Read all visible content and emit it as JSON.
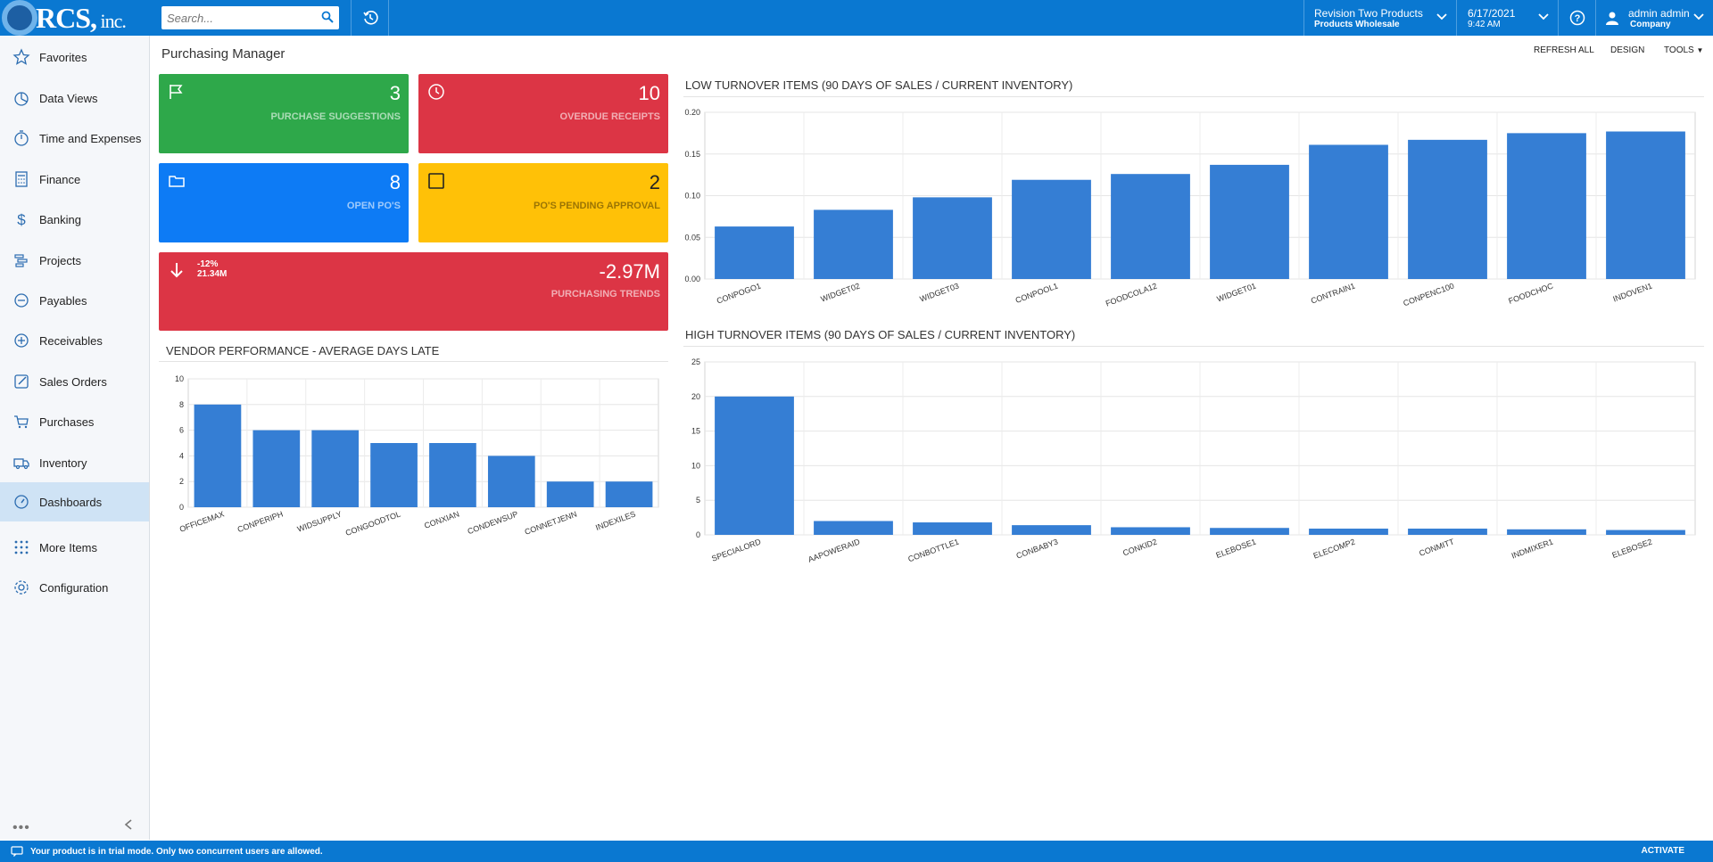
{
  "brand": {
    "logo_main": "RCS,",
    "logo_suffix": " inc."
  },
  "search": {
    "placeholder": "Search..."
  },
  "branch": {
    "name": "Revision Two Products",
    "sub": "Products Wholesale"
  },
  "datetime": {
    "date": "6/17/2021",
    "time": "9:42 AM"
  },
  "user": {
    "name": "admin admin",
    "company": "Company"
  },
  "sidebar": {
    "items": [
      {
        "label": "Favorites",
        "icon": "star-icon"
      },
      {
        "label": "Data Views",
        "icon": "pie-chart-icon"
      },
      {
        "label": "Time and Expenses",
        "icon": "stopwatch-icon"
      },
      {
        "label": "Finance",
        "icon": "calculator-icon"
      },
      {
        "label": "Banking",
        "icon": "dollar-icon"
      },
      {
        "label": "Projects",
        "icon": "gantt-icon"
      },
      {
        "label": "Payables",
        "icon": "minus-circle-icon"
      },
      {
        "label": "Receivables",
        "icon": "plus-circle-icon"
      },
      {
        "label": "Sales Orders",
        "icon": "pencil-icon"
      },
      {
        "label": "Purchases",
        "icon": "cart-icon"
      },
      {
        "label": "Inventory",
        "icon": "truck-icon"
      },
      {
        "label": "Dashboards",
        "icon": "dashboard-icon",
        "active": true
      },
      {
        "label": "More Items",
        "icon": "grid-icon"
      },
      {
        "label": "Configuration",
        "icon": "gear-icon"
      }
    ],
    "more": "•••"
  },
  "page": {
    "title": "Purchasing Manager"
  },
  "toolbar": {
    "refresh": "REFRESH ALL",
    "design": "DESIGN",
    "tools": "TOOLS"
  },
  "tiles": {
    "purchase_suggestions": {
      "value": "3",
      "label": "PURCHASE SUGGESTIONS",
      "color": "#2ea84a"
    },
    "overdue_receipts": {
      "value": "10",
      "label": "OVERDUE RECEIPTS",
      "color": "#dc3545"
    },
    "open_pos": {
      "value": "8",
      "label": "OPEN PO'S",
      "color": "#0d7bf5"
    },
    "pending_approval": {
      "value": "2",
      "label": "PO'S PENDING APPROVAL",
      "color": "#ffc107"
    },
    "trends": {
      "value": "-2.97M",
      "label": "PURCHASING TRENDS",
      "pct": "-12%",
      "prev": "21.34M",
      "color": "#dc3545"
    }
  },
  "widgets": {
    "low_title": "LOW TURNOVER ITEMS (90 DAYS OF SALES / CURRENT INVENTORY)",
    "high_title": "HIGH TURNOVER ITEMS (90 DAYS OF SALES / CURRENT INVENTORY)",
    "vendor_title": "VENDOR PERFORMANCE - AVERAGE DAYS LATE"
  },
  "chart_data": [
    {
      "id": "low",
      "type": "bar",
      "categories": [
        "CONPOGO1",
        "WIDGET02",
        "WIDGET03",
        "CONPOOL1",
        "FOODCOLA12",
        "WIDGET01",
        "CONTRAIN1",
        "CONPENC100",
        "FOODCHOC",
        "INDOVEN1"
      ],
      "values": [
        0.063,
        0.083,
        0.098,
        0.119,
        0.126,
        0.137,
        0.161,
        0.167,
        0.175,
        0.177
      ],
      "ylim": [
        0,
        0.2
      ],
      "yticks": [
        "0.00",
        "0.05",
        "0.10",
        "0.15",
        "0.20"
      ],
      "grid": true,
      "color": "#357ed4"
    },
    {
      "id": "high",
      "type": "bar",
      "categories": [
        "SPECIALORD",
        "AAPOWERAID",
        "CONBOTTLE1",
        "CONBABY3",
        "CONKID2",
        "ELEBOSE1",
        "ELECOMP2",
        "CONMITT",
        "INDMIXER1",
        "ELEBOSE2"
      ],
      "values": [
        20,
        2.0,
        1.8,
        1.4,
        1.1,
        1.0,
        0.9,
        0.9,
        0.8,
        0.7
      ],
      "ylim": [
        0,
        25
      ],
      "yticks": [
        "0",
        "5",
        "10",
        "15",
        "20",
        "25"
      ],
      "grid": true,
      "color": "#357ed4"
    },
    {
      "id": "vendor",
      "type": "bar",
      "categories": [
        "OFFICEMAX",
        "CONPERIPH",
        "WIDSUPPLY",
        "CONGOODTOL",
        "CONXIAN",
        "CONDEWSUP",
        "CONNETJENN",
        "INDEXILES"
      ],
      "values": [
        8,
        6,
        6,
        5,
        5,
        4,
        2,
        2
      ],
      "ylim": [
        0,
        10
      ],
      "yticks": [
        "0",
        "2",
        "4",
        "6",
        "8",
        "10"
      ],
      "grid": true,
      "color": "#357ed4"
    }
  ],
  "footer": {
    "message": "Your product is in trial mode. Only two concurrent users are allowed.",
    "activate": "ACTIVATE"
  }
}
